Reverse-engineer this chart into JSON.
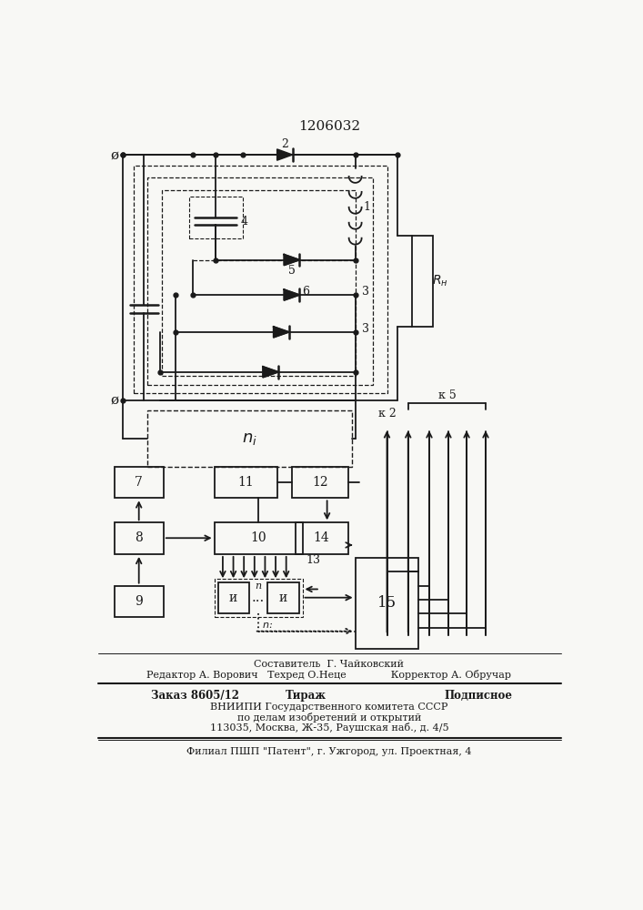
{
  "title": "1206032",
  "bg_color": "#f8f8f5",
  "line_color": "#1a1a1a",
  "footer_lines": [
    "Составитель  Г. Чайковский",
    "Редактор А. Ворович   Техред О.Неце              Корректор А. Обручар",
    "Заказ 8605/12",
    "Тираж",
    "Подписное",
    "ВНИИПИ Государственного комитета СССР",
    "по делам изобретений и открытий",
    "113035, Москва, Ж-35, Раушская наб., д. 4/5",
    "Филиал ПШП \"Патент\", г. Ужгород, ул. Проектная, 4"
  ]
}
